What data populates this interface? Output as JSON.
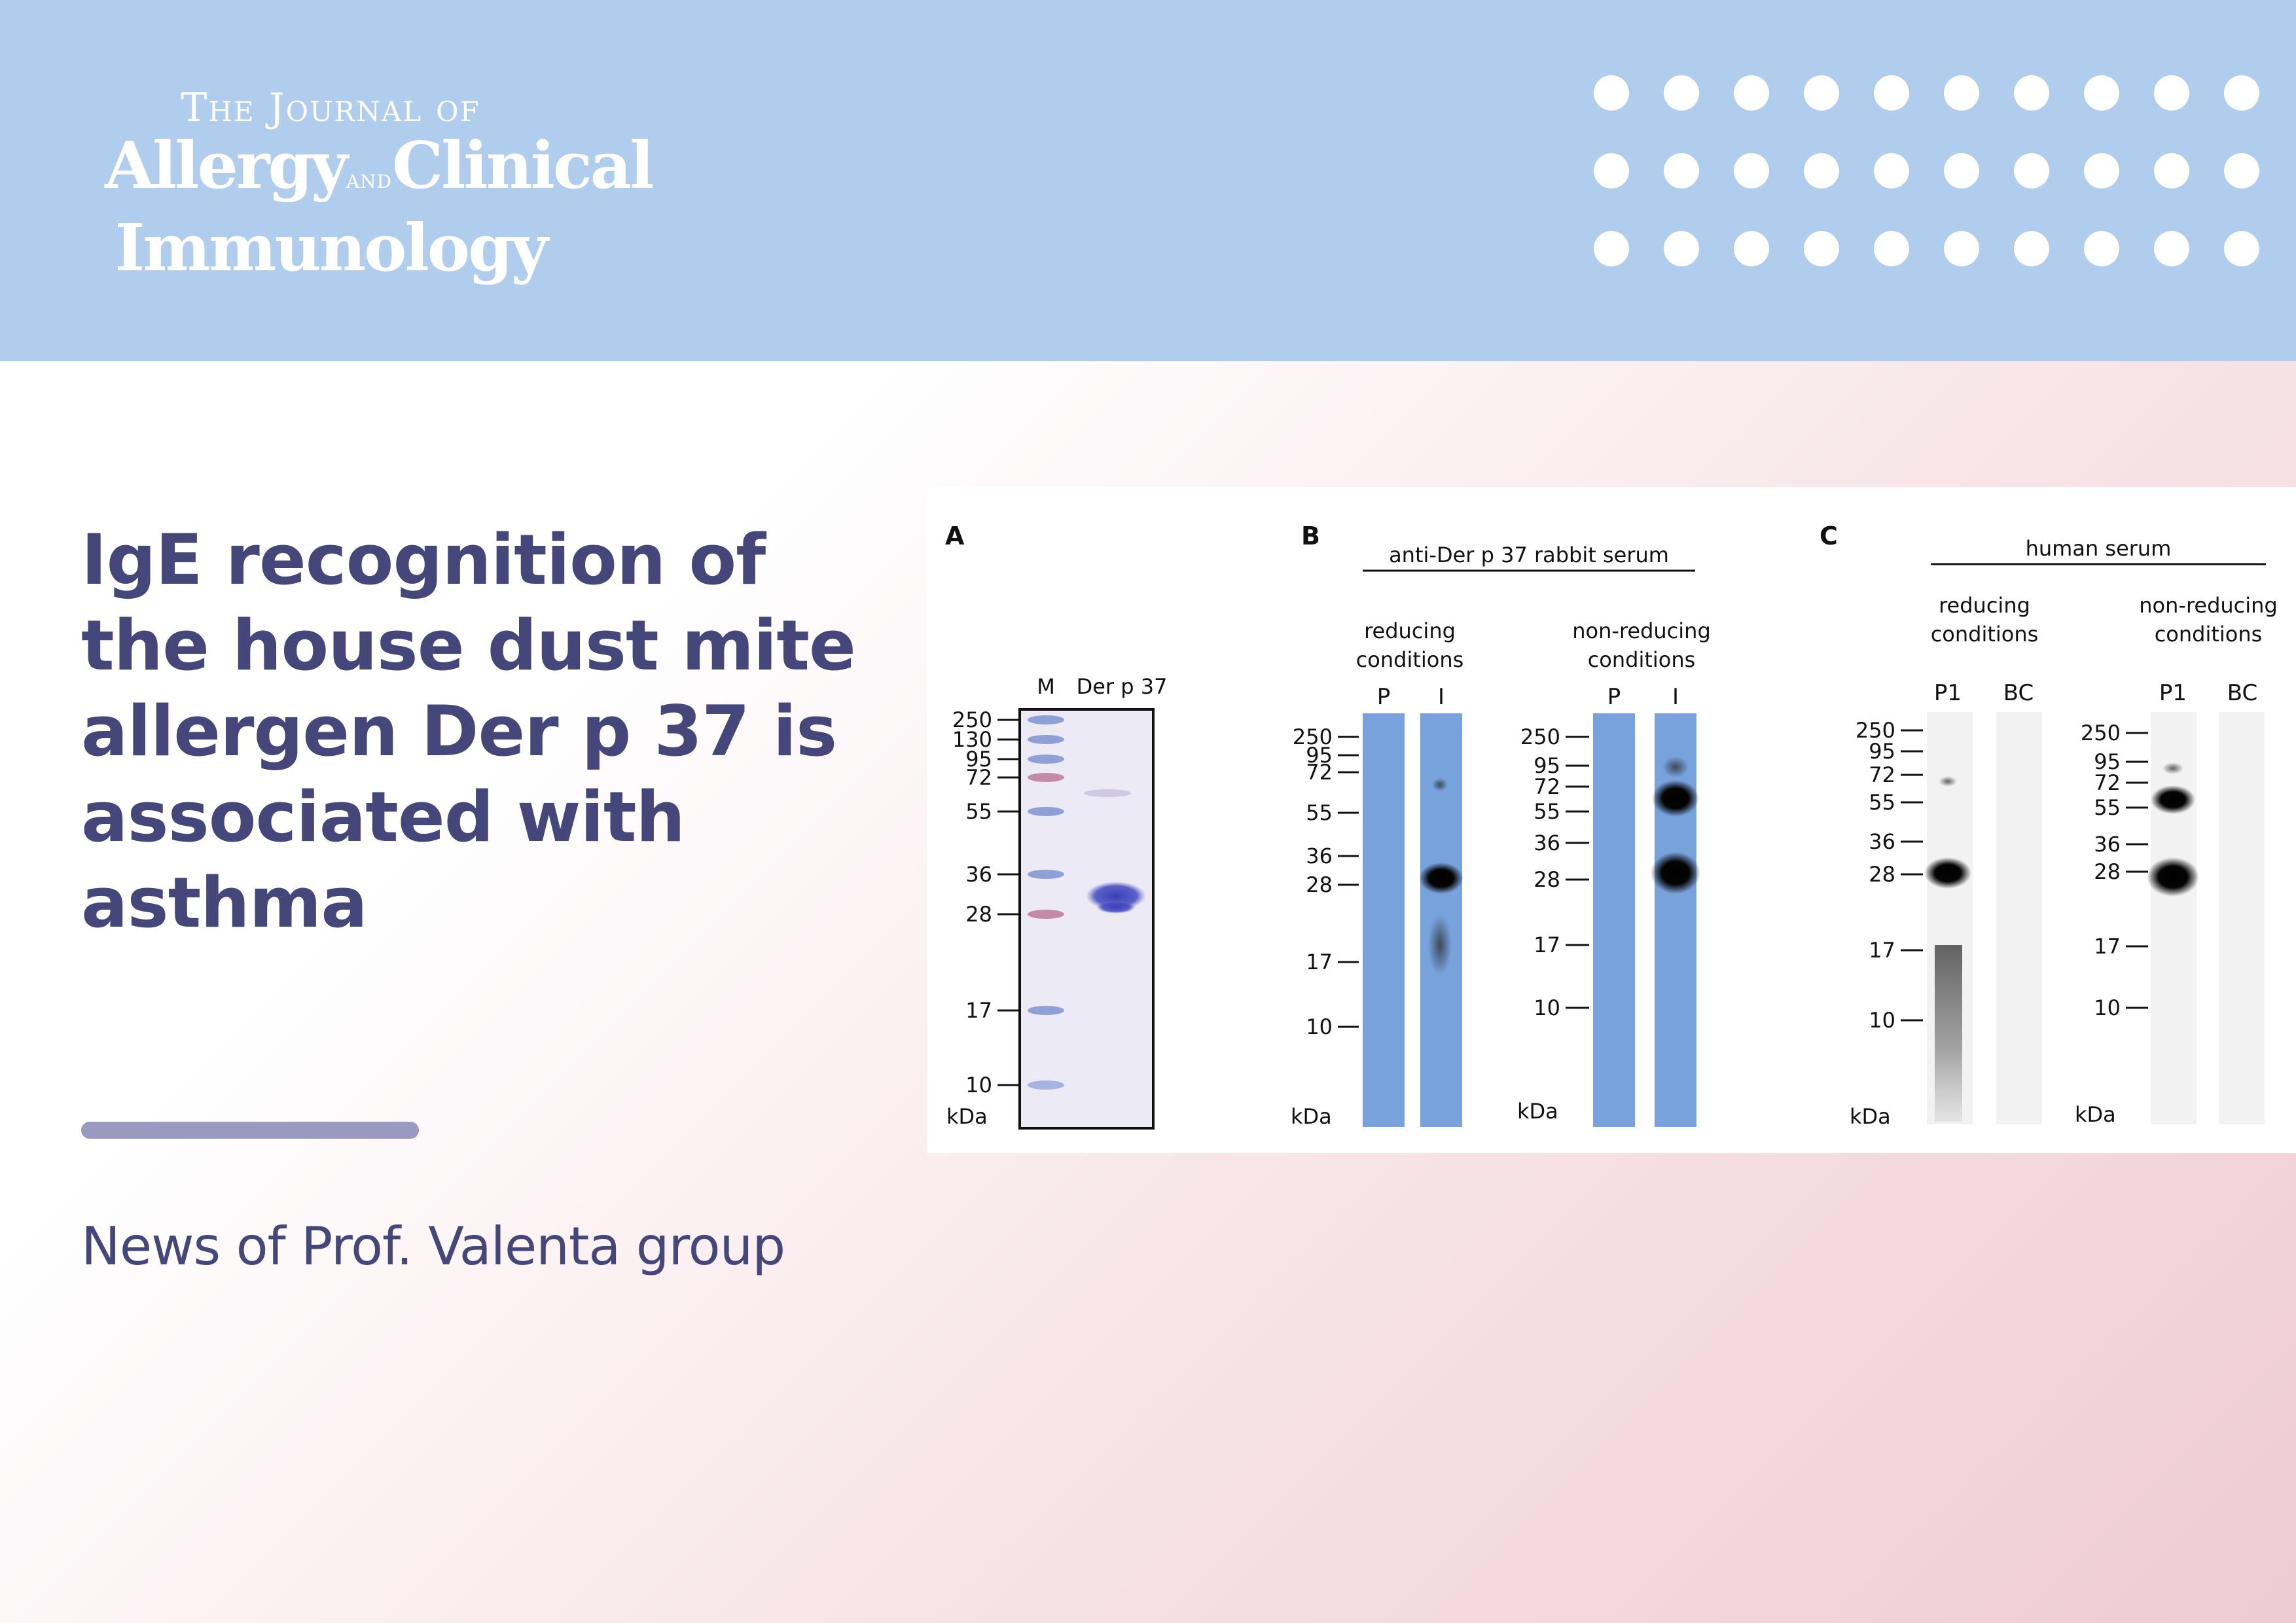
{
  "colors": {
    "header_bg": "#b0cdee",
    "title_text": "#45477a",
    "divider": "#9a99bf",
    "blot_blue": "#78a2dc",
    "band": "#060606"
  },
  "journal": {
    "line1": "The Journal of",
    "line2_a": "Allergy",
    "line2_and": "and",
    "line2_b": "Clinical",
    "line3": "Immunology"
  },
  "article": {
    "title": "IgE recognition of the house dust mite allergen Der p 37 is associated with asthma"
  },
  "footer": {
    "news": "News of Prof. Valenta group"
  },
  "figure": {
    "panel_a": {
      "letter": "A",
      "lane_m": "M",
      "lane_derp": "Der p 37",
      "unit": "kDa",
      "markers": [
        "250",
        "130",
        "95",
        "72",
        "55",
        "36",
        "28",
        "17",
        "10"
      ]
    },
    "panel_b": {
      "letter": "B",
      "header": "anti-Der p 37 rabbit serum",
      "reducing_1": "reducing",
      "reducing_2": "conditions",
      "nonreducing_1": "non-reducing",
      "nonreducing_2": "conditions",
      "lane_p": "P",
      "lane_i": "I",
      "unit": "kDa",
      "markers_reducing": [
        "250",
        "95",
        "72",
        "55",
        "36",
        "28",
        "17",
        "10"
      ],
      "markers_nonreducing": [
        "250",
        "95",
        "72",
        "55",
        "36",
        "28",
        "17",
        "10"
      ]
    },
    "panel_c": {
      "letter": "C",
      "header": "human serum",
      "reducing_1": "reducing",
      "reducing_2": "conditions",
      "nonreducing_1": "non-reducing",
      "nonreducing_2": "conditions",
      "lane_p1": "P1",
      "lane_bc": "BC",
      "unit": "kDa",
      "markers_reducing": [
        "250",
        "95",
        "72",
        "55",
        "36",
        "28",
        "17",
        "10"
      ],
      "markers_nonreducing": [
        "250",
        "95",
        "72",
        "55",
        "36",
        "28",
        "17",
        "10"
      ]
    }
  }
}
